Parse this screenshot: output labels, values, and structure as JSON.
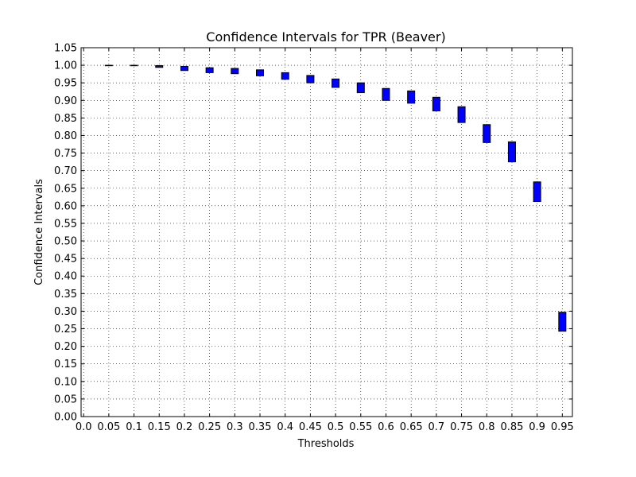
{
  "chart_data": {
    "type": "box",
    "title": "Confidence Intervals for TPR (Beaver)",
    "xlabel": "Thresholds",
    "ylabel": "Confidence Intervals",
    "x_tick_labels": [
      "0.0",
      "0.05",
      "0.1",
      "0.15",
      "0.2",
      "0.25",
      "0.3",
      "0.35",
      "0.4",
      "0.45",
      "0.5",
      "0.55",
      "0.6",
      "0.65",
      "0.7",
      "0.75",
      "0.8",
      "0.85",
      "0.9",
      "0.95"
    ],
    "y_tick_labels": [
      "0.00",
      "0.05",
      "0.10",
      "0.15",
      "0.20",
      "0.25",
      "0.30",
      "0.35",
      "0.40",
      "0.45",
      "0.50",
      "0.55",
      "0.60",
      "0.65",
      "0.70",
      "0.75",
      "0.80",
      "0.85",
      "0.90",
      "0.95",
      "1.00",
      "1.05"
    ],
    "xlim": [
      -0.005,
      0.97
    ],
    "ylim": [
      0.0,
      1.05
    ],
    "grid": true,
    "series": [
      {
        "color": "#0000ff",
        "intervals": [
          {
            "x": 0.05,
            "low": 0.999,
            "high": 1.0
          },
          {
            "x": 0.1,
            "low": 0.999,
            "high": 1.0
          },
          {
            "x": 0.15,
            "low": 0.994,
            "high": 0.999
          },
          {
            "x": 0.2,
            "low": 0.985,
            "high": 0.997
          },
          {
            "x": 0.25,
            "low": 0.979,
            "high": 0.993
          },
          {
            "x": 0.3,
            "low": 0.976,
            "high": 0.991
          },
          {
            "x": 0.35,
            "low": 0.97,
            "high": 0.987
          },
          {
            "x": 0.4,
            "low": 0.96,
            "high": 0.979
          },
          {
            "x": 0.45,
            "low": 0.95,
            "high": 0.971
          },
          {
            "x": 0.5,
            "low": 0.937,
            "high": 0.961
          },
          {
            "x": 0.55,
            "low": 0.922,
            "high": 0.95
          },
          {
            "x": 0.6,
            "low": 0.9,
            "high": 0.934
          },
          {
            "x": 0.65,
            "low": 0.892,
            "high": 0.927
          },
          {
            "x": 0.7,
            "low": 0.87,
            "high": 0.909
          },
          {
            "x": 0.75,
            "low": 0.837,
            "high": 0.882
          },
          {
            "x": 0.8,
            "low": 0.78,
            "high": 0.831
          },
          {
            "x": 0.85,
            "low": 0.725,
            "high": 0.782
          },
          {
            "x": 0.9,
            "low": 0.612,
            "high": 0.668
          },
          {
            "x": 0.95,
            "low": 0.243,
            "high": 0.297
          }
        ]
      }
    ]
  }
}
